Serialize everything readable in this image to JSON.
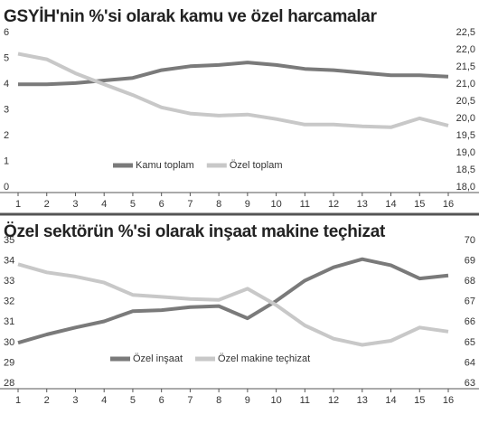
{
  "chart_data": [
    {
      "type": "line",
      "title": "GSYİH'nin %'si olarak kamu ve özel harcamalar",
      "x": [
        1,
        2,
        3,
        4,
        5,
        6,
        7,
        8,
        9,
        10,
        11,
        12,
        13,
        14,
        15,
        16
      ],
      "xlim": [
        1,
        16
      ],
      "xticks": [
        1,
        2,
        3,
        4,
        5,
        6,
        7,
        8,
        9,
        10,
        11,
        12,
        13,
        14,
        15,
        16
      ],
      "ylim": [
        0,
        6
      ],
      "yticks": [
        0,
        1,
        2,
        3,
        4,
        5,
        6
      ],
      "y2lim": [
        18,
        22.5
      ],
      "y2ticks": [
        {
          "value": 18,
          "label": "18,0"
        },
        {
          "value": 18.5,
          "label": "18,5"
        },
        {
          "value": 19,
          "label": "19,0"
        },
        {
          "value": 19.5,
          "label": "19,5"
        },
        {
          "value": 20,
          "label": "20,0"
        },
        {
          "value": 20.5,
          "label": "20,5"
        },
        {
          "value": 21,
          "label": "21,0"
        },
        {
          "value": 21.5,
          "label": "21,5"
        },
        {
          "value": 22,
          "label": "22,0"
        },
        {
          "value": 22.5,
          "label": "22,5"
        }
      ],
      "legend": "bottom",
      "series": [
        {
          "name": "Kamu toplam",
          "color": "#7a7a7a",
          "values": [
            4.2,
            4.2,
            4.25,
            4.35,
            4.45,
            4.75,
            4.9,
            4.95,
            5.05,
            4.95,
            4.8,
            4.75,
            4.65,
            4.55,
            4.55,
            4.5
          ]
        },
        {
          "name": "Özel toplam",
          "color": "#c8c8c8",
          "axis": "y2",
          "values": [
            22.04,
            21.88,
            21.47,
            21.15,
            20.84,
            20.48,
            20.3,
            20.24,
            20.27,
            20.14,
            19.98,
            19.98,
            19.93,
            19.9,
            20.16,
            19.95
          ]
        }
      ]
    },
    {
      "type": "line",
      "title": "Özel sektörün %'si olarak inşaat makine teçhizat",
      "x": [
        1,
        2,
        3,
        4,
        5,
        6,
        7,
        8,
        9,
        10,
        11,
        12,
        13,
        14,
        15,
        16
      ],
      "xlim": [
        1,
        16
      ],
      "xticks": [
        1,
        2,
        3,
        4,
        5,
        6,
        7,
        8,
        9,
        10,
        11,
        12,
        13,
        14,
        15,
        16
      ],
      "ylim": [
        28,
        35
      ],
      "yticks": [
        28,
        29,
        30,
        31,
        32,
        33,
        34,
        35
      ],
      "y2lim": [
        63,
        70
      ],
      "y2ticks": [
        63,
        64,
        65,
        66,
        67,
        68,
        69,
        70
      ],
      "legend": "bottom",
      "series": [
        {
          "name": "Özel inşaat",
          "color": "#7a7a7a",
          "values": [
            30.25,
            30.66,
            31.0,
            31.3,
            31.8,
            31.85,
            32.0,
            32.05,
            31.45,
            32.3,
            33.3,
            33.95,
            34.35,
            34.05,
            33.4,
            33.55
          ]
        },
        {
          "name": "Özel makine teçhizat",
          "color": "#c8c8c8",
          "axis": "y2",
          "values": [
            69.1,
            68.7,
            68.5,
            68.2,
            67.6,
            67.5,
            67.4,
            67.35,
            67.9,
            67.1,
            66.1,
            65.45,
            65.15,
            65.35,
            66.0,
            65.8
          ]
        }
      ]
    }
  ]
}
